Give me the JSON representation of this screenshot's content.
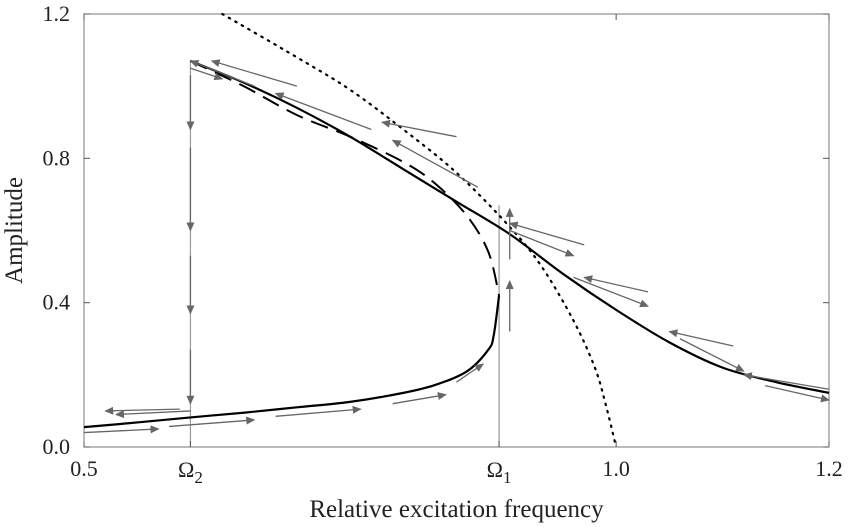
{
  "chart_data": {
    "type": "line",
    "title": "",
    "xlabel": "Relative excitation frequency",
    "ylabel": "Amplitude",
    "xlim": [
      0.5,
      1.2
    ],
    "ylim": [
      0.0,
      1.2
    ],
    "grid": false,
    "legend": "none",
    "x_ticks": [
      {
        "value": 0.5,
        "label": "0.5"
      },
      {
        "value": 1.0,
        "label": "1.0"
      },
      {
        "value": 1.2,
        "label": "1.2"
      }
    ],
    "x_marker_ticks": [
      {
        "value": 0.6,
        "symbol": "Ω",
        "subscript": "2"
      },
      {
        "value": 0.89,
        "symbol": "Ω",
        "subscript": "1"
      }
    ],
    "y_ticks": [
      {
        "value": 0.0,
        "label": "0.0"
      },
      {
        "value": 0.4,
        "label": "0.4"
      },
      {
        "value": 0.8,
        "label": "0.8"
      },
      {
        "value": 1.2,
        "label": "1.2"
      }
    ],
    "series": [
      {
        "style": "solid",
        "x": [
          0.6,
          0.65,
          0.7,
          0.75,
          0.8,
          0.85,
          0.9,
          0.95,
          1.0,
          1.05,
          1.1,
          1.15,
          1.2
        ],
        "y": [
          1.07,
          1.01,
          0.94,
          0.86,
          0.77,
          0.68,
          0.59,
          0.48,
          0.38,
          0.29,
          0.22,
          0.18,
          0.15
        ]
      },
      {
        "style": "solid",
        "x": [
          0.5,
          0.55,
          0.6,
          0.65,
          0.7,
          0.75,
          0.8,
          0.83,
          0.86,
          0.88,
          0.885,
          0.89
        ],
        "y": [
          0.055,
          0.068,
          0.082,
          0.095,
          0.11,
          0.125,
          0.15,
          0.172,
          0.21,
          0.27,
          0.31,
          0.42
        ]
      },
      {
        "style": "dashed",
        "x": [
          0.6,
          0.65,
          0.7,
          0.75,
          0.8,
          0.83,
          0.86,
          0.88,
          0.89
        ],
        "y": [
          1.07,
          1.0,
          0.92,
          0.86,
          0.79,
          0.73,
          0.64,
          0.54,
          0.42
        ]
      },
      {
        "style": "dotted",
        "x": [
          0.63,
          0.7,
          0.75,
          0.8,
          0.85,
          0.9,
          0.93,
          0.96,
          0.98,
          0.99,
          1.0
        ],
        "y": [
          1.2,
          1.08,
          0.99,
          0.88,
          0.76,
          0.61,
          0.5,
          0.35,
          0.22,
          0.12,
          0.0
        ]
      }
    ],
    "vertical_lines": [
      {
        "x": 0.6,
        "y_from": 0.0,
        "y_to": 1.07
      },
      {
        "x": 0.89,
        "y_from": 0.0,
        "y_to": 0.67
      }
    ],
    "arrows": [
      {
        "from": [
          0.5,
          0.04
        ],
        "to": [
          0.57,
          0.05
        ]
      },
      {
        "from": [
          0.58,
          0.057
        ],
        "to": [
          0.66,
          0.075
        ]
      },
      {
        "from": [
          0.68,
          0.085
        ],
        "to": [
          0.76,
          0.105
        ]
      },
      {
        "from": [
          0.79,
          0.12
        ],
        "to": [
          0.84,
          0.145
        ]
      },
      {
        "from": [
          0.85,
          0.18
        ],
        "to": [
          0.875,
          0.23
        ]
      },
      {
        "from": [
          0.9,
          0.32
        ],
        "to": [
          0.9,
          0.46
        ]
      },
      {
        "from": [
          0.9,
          0.52
        ],
        "to": [
          0.9,
          0.66
        ]
      },
      {
        "from": [
          0.87,
          0.72
        ],
        "to": [
          0.79,
          0.85
        ]
      },
      {
        "from": [
          0.77,
          0.88
        ],
        "to": [
          0.68,
          0.98
        ]
      },
      {
        "from": [
          0.66,
          1.0
        ],
        "to": [
          0.6,
          1.07
        ]
      },
      {
        "from": [
          0.6,
          1.05
        ],
        "to": [
          0.63,
          1.02
        ]
      },
      {
        "from": [
          0.6,
          1.03
        ],
        "to": [
          0.6,
          0.88
        ]
      },
      {
        "from": [
          0.6,
          0.83
        ],
        "to": [
          0.6,
          0.6
        ]
      },
      {
        "from": [
          0.6,
          0.53
        ],
        "to": [
          0.6,
          0.37
        ]
      },
      {
        "from": [
          0.6,
          0.27
        ],
        "to": [
          0.6,
          0.12
        ]
      },
      {
        "from": [
          0.6,
          0.1
        ],
        "to": [
          0.53,
          0.09
        ]
      },
      {
        "from": [
          0.59,
          0.105
        ],
        "to": [
          0.52,
          0.1
        ]
      },
      {
        "from": [
          0.9,
          0.6
        ],
        "to": [
          0.96,
          0.53
        ]
      },
      {
        "from": [
          0.96,
          0.47
        ],
        "to": [
          1.03,
          0.39
        ]
      },
      {
        "from": [
          1.06,
          0.3
        ],
        "to": [
          1.12,
          0.21
        ]
      },
      {
        "from": [
          1.14,
          0.17
        ],
        "to": [
          1.2,
          0.13
        ]
      },
      {
        "from": [
          1.2,
          0.16
        ],
        "to": [
          1.12,
          0.2
        ]
      },
      {
        "from": [
          1.11,
          0.28
        ],
        "to": [
          1.05,
          0.32
        ]
      },
      {
        "from": [
          1.03,
          0.43
        ],
        "to": [
          0.97,
          0.47
        ]
      },
      {
        "from": [
          0.97,
          0.56
        ],
        "to": [
          0.9,
          0.62
        ]
      },
      {
        "from": [
          0.85,
          0.86
        ],
        "to": [
          0.78,
          0.9
        ]
      },
      {
        "from": [
          0.7,
          1.0
        ],
        "to": [
          0.62,
          1.07
        ]
      }
    ]
  }
}
